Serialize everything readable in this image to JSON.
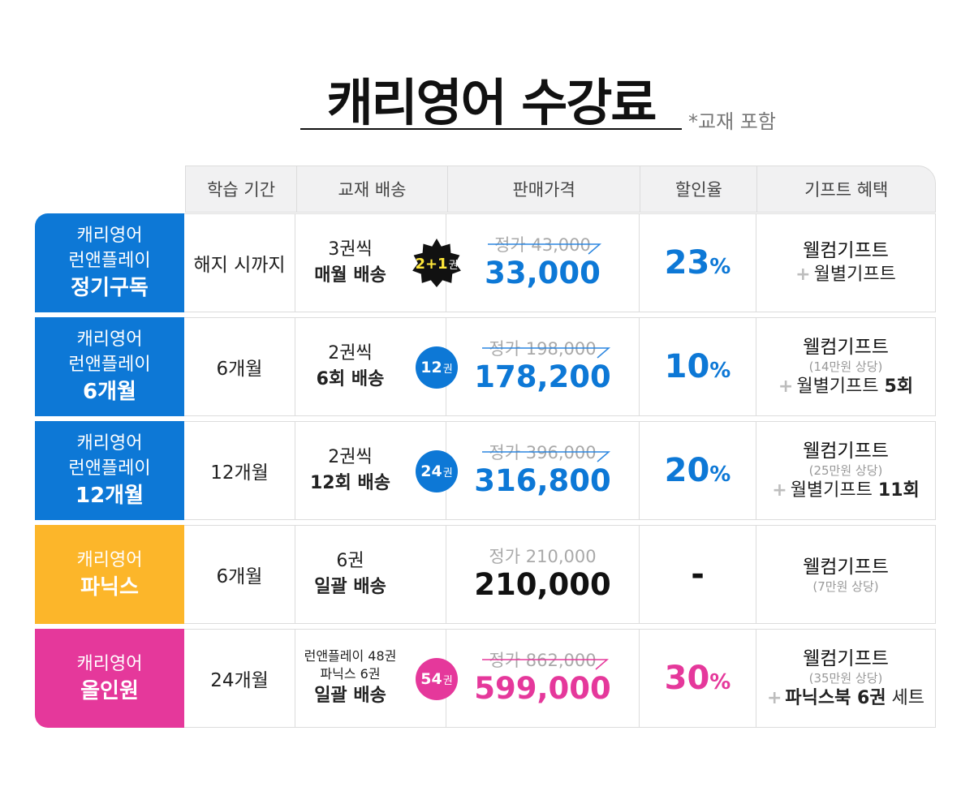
{
  "title": "캐리영어 수강료",
  "title_note": "*교재 포함",
  "headers": [
    "학습 기간",
    "교재 배송",
    "판매가격",
    "할인율",
    "기프트 혜택"
  ],
  "colors": {
    "blue": "#0d78d6",
    "yellow": "#fcb62a",
    "pink": "#e5389b",
    "dark": "#111111"
  },
  "rows": [
    {
      "label_sub": [
        "캐리영어",
        "런앤플레이"
      ],
      "label_main": "정기구독",
      "period": "해지 시까지",
      "ship_l1": "3권씩",
      "ship_l2": "매월 배송",
      "badge_num": "2+1",
      "badge_unit": "권",
      "orig": "정가 43,000",
      "price": "33,000",
      "rate": "23",
      "rate_unit": "%",
      "gift": "웰컴기프트",
      "gift_plus": "+",
      "gift2": "월별기프트"
    },
    {
      "label_sub": [
        "캐리영어",
        "런앤플레이"
      ],
      "label_main": "6개월",
      "period": "6개월",
      "ship_l1": "2권씩",
      "ship_l2": "6회 배송",
      "badge_num": "12",
      "badge_unit": "권",
      "orig": "정가 198,000",
      "price": "178,200",
      "rate": "10",
      "rate_unit": "%",
      "gift": "웰컴기프트",
      "gift_note": "(14만원 상당)",
      "gift_plus": "+",
      "gift2": "월별기프트",
      "gift2_bold": "5회"
    },
    {
      "label_sub": [
        "캐리영어",
        "런앤플레이"
      ],
      "label_main": "12개월",
      "period": "12개월",
      "ship_l1": "2권씩",
      "ship_l2": "12회 배송",
      "badge_num": "24",
      "badge_unit": "권",
      "orig": "정가 396,000",
      "price": "316,800",
      "rate": "20",
      "rate_unit": "%",
      "gift": "웰컴기프트",
      "gift_note": "(25만원 상당)",
      "gift_plus": "+",
      "gift2": "월별기프트",
      "gift2_bold": "11회"
    },
    {
      "label_sub": [
        "캐리영어"
      ],
      "label_main": "파닉스",
      "period": "6개월",
      "ship_l1": "6권",
      "ship_l2": "일괄 배송",
      "orig": "정가 210,000",
      "price": "210,000",
      "rate": "-",
      "gift": "웰컴기프트",
      "gift_note": "(7만원 상당)"
    },
    {
      "label_sub": [
        "캐리영어"
      ],
      "label_main": "올인원",
      "period": "24개월",
      "ship_s1": "런앤플레이 48권",
      "ship_s2": "파닉스 6권",
      "ship_l2": "일괄 배송",
      "badge_num": "54",
      "badge_unit": "권",
      "orig": "정가 862,000",
      "price": "599,000",
      "rate": "30",
      "rate_unit": "%",
      "gift": "웰컴기프트",
      "gift_note": "(35만원 상당)",
      "gift_plus": "+",
      "gift2_bold_first": "파닉스북 6권",
      "gift2_tail": " 세트"
    }
  ]
}
